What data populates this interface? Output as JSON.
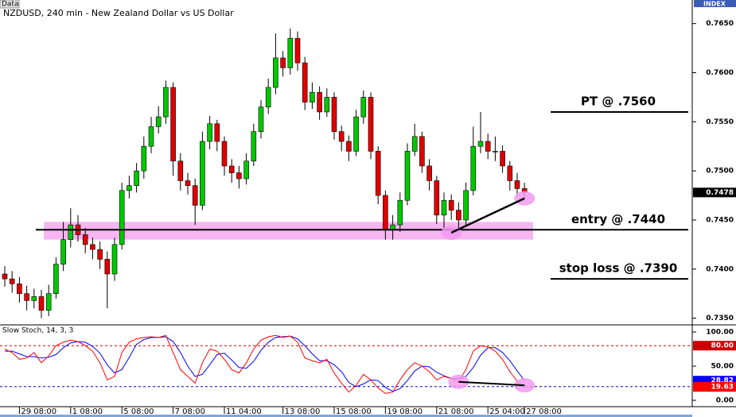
{
  "header": {
    "menu": "Data",
    "index": "INDEX"
  },
  "chart_data": [
    {
      "type": "candlestick",
      "title": "NZDUSD, 240 min - New Zealand Dollar vs US Dollar",
      "up_color": "#00c800",
      "down_color": "#e00000",
      "categories": [
        null,
        null,
        "29 08:00",
        null,
        null,
        null,
        null,
        null,
        null,
        "1 08:00",
        null,
        null,
        null,
        null,
        null,
        null,
        "5 08:00",
        null,
        null,
        null,
        null,
        null,
        null,
        "7 08:00",
        null,
        null,
        null,
        null,
        null,
        null,
        "11 04:00",
        null,
        null,
        null,
        null,
        null,
        null,
        null,
        "13 08:00",
        null,
        null,
        null,
        null,
        null,
        null,
        "15 08:00",
        null,
        null,
        null,
        null,
        null,
        null,
        "19 08:00",
        null,
        null,
        null,
        null,
        null,
        null,
        "21 08:00",
        null,
        null,
        null,
        null,
        null,
        null,
        "25 04:00",
        null,
        null,
        null,
        null,
        "27 08:00"
      ],
      "open": [
        0.7395,
        0.739,
        0.7385,
        0.7375,
        0.7368,
        0.7372,
        0.7358,
        0.7375,
        0.7405,
        0.743,
        0.7445,
        0.7435,
        0.7425,
        0.742,
        0.741,
        0.7395,
        0.7425,
        0.748,
        0.7485,
        0.75,
        0.7525,
        0.7545,
        0.7555,
        0.7585,
        0.751,
        0.749,
        0.7485,
        0.7465,
        0.753,
        0.7548,
        0.753,
        0.7505,
        0.7498,
        0.7492,
        0.751,
        0.754,
        0.7565,
        0.7585,
        0.7615,
        0.7605,
        0.7635,
        0.761,
        0.757,
        0.758,
        0.756,
        0.7575,
        0.754,
        0.753,
        0.752,
        0.7555,
        0.7575,
        0.752,
        0.7475,
        0.744,
        0.7445,
        0.747,
        0.752,
        0.7535,
        0.7505,
        0.749,
        0.7455,
        0.747,
        0.746,
        0.745,
        0.748,
        0.7525,
        0.753,
        0.752,
        0.752,
        0.7505,
        0.749,
        0.7482
      ],
      "high": [
        0.7403,
        0.7398,
        0.7392,
        0.7383,
        0.738,
        0.7379,
        0.7384,
        0.7412,
        0.7448,
        0.7462,
        0.7455,
        0.7442,
        0.7432,
        0.7428,
        0.7418,
        0.7432,
        0.7488,
        0.7495,
        0.7508,
        0.7535,
        0.7555,
        0.7566,
        0.7592,
        0.759,
        0.7518,
        0.7498,
        0.7492,
        0.754,
        0.7556,
        0.7552,
        0.7535,
        0.7512,
        0.7505,
        0.7518,
        0.7548,
        0.7572,
        0.7594,
        0.764,
        0.7622,
        0.7645,
        0.7642,
        0.7616,
        0.759,
        0.7586,
        0.7584,
        0.758,
        0.7546,
        0.7536,
        0.7562,
        0.7582,
        0.758,
        0.7525,
        0.748,
        0.7455,
        0.7478,
        0.7528,
        0.7548,
        0.754,
        0.7512,
        0.7495,
        0.7478,
        0.7476,
        0.7468,
        0.7488,
        0.7545,
        0.756,
        0.7538,
        0.7535,
        0.7526,
        0.751,
        0.7498,
        0.7488
      ],
      "low": [
        0.7382,
        0.7376,
        0.7366,
        0.7358,
        0.736,
        0.735,
        0.7352,
        0.737,
        0.7398,
        0.7422,
        0.7428,
        0.7416,
        0.741,
        0.74,
        0.736,
        0.7388,
        0.742,
        0.7472,
        0.7478,
        0.7492,
        0.7518,
        0.7538,
        0.7548,
        0.7495,
        0.748,
        0.7476,
        0.7445,
        0.746,
        0.7522,
        0.752,
        0.7495,
        0.7488,
        0.7482,
        0.7486,
        0.7505,
        0.7533,
        0.7558,
        0.7578,
        0.7596,
        0.7598,
        0.7602,
        0.7562,
        0.7563,
        0.7552,
        0.7555,
        0.7532,
        0.752,
        0.751,
        0.7515,
        0.7548,
        0.7512,
        0.7466,
        0.743,
        0.743,
        0.7438,
        0.7465,
        0.7515,
        0.7498,
        0.748,
        0.7446,
        0.744,
        0.745,
        0.744,
        0.7445,
        0.7475,
        0.7518,
        0.7512,
        0.751,
        0.7498,
        0.748,
        0.7475,
        0.7472
      ],
      "close": [
        0.739,
        0.7385,
        0.7375,
        0.7368,
        0.7372,
        0.7358,
        0.7375,
        0.7405,
        0.743,
        0.7445,
        0.7435,
        0.7425,
        0.742,
        0.741,
        0.7395,
        0.7425,
        0.748,
        0.7485,
        0.75,
        0.7525,
        0.7545,
        0.7555,
        0.7585,
        0.751,
        0.749,
        0.7485,
        0.7465,
        0.753,
        0.7548,
        0.753,
        0.7505,
        0.7498,
        0.7492,
        0.751,
        0.754,
        0.7565,
        0.7585,
        0.7615,
        0.7605,
        0.7635,
        0.761,
        0.757,
        0.758,
        0.756,
        0.7575,
        0.754,
        0.753,
        0.752,
        0.7555,
        0.7575,
        0.752,
        0.7475,
        0.744,
        0.7445,
        0.747,
        0.752,
        0.7535,
        0.7505,
        0.749,
        0.7455,
        0.747,
        0.746,
        0.745,
        0.748,
        0.7525,
        0.753,
        0.752,
        0.752,
        0.7505,
        0.749,
        0.7482,
        0.7478
      ],
      "last_label": "0.7478",
      "ylim": [
        0.7344,
        0.7674
      ],
      "yticks": [
        {
          "value": 0.735,
          "label": "0.7350"
        },
        {
          "value": 0.74,
          "label": "0.7400"
        },
        {
          "value": 0.745,
          "label": "0.7450"
        },
        {
          "value": 0.75,
          "label": "0.7500"
        },
        {
          "value": 0.755,
          "label": "0.7550"
        },
        {
          "value": 0.76,
          "label": "0.7600"
        },
        {
          "value": 0.765,
          "label": "0.7650"
        }
      ],
      "levels": [
        {
          "value": 0.756,
          "label": "PT @ .7560"
        },
        {
          "value": 0.744,
          "label": "entry @ .7440"
        },
        {
          "value": 0.739,
          "label": "stop loss @ .7390"
        }
      ],
      "highlight_band": [
        0.743,
        0.7448
      ],
      "trendlines": [
        {
          "x": [
            61,
            71
          ],
          "y": [
            0.7437,
            0.7472
          ]
        }
      ]
    },
    {
      "type": "line",
      "title": "Slow Stoch, 14, 3, 3",
      "series": [
        {
          "color": "#0000ff",
          "last_label": "28.82",
          "values": [
            72,
            72,
            68,
            64,
            64,
            62,
            63,
            67,
            77,
            84,
            86,
            85,
            79,
            69,
            52,
            40,
            45,
            63,
            82,
            89,
            92,
            92,
            93,
            86,
            70,
            50,
            35,
            38,
            52,
            67,
            69,
            59,
            48,
            47,
            57,
            73,
            85,
            92,
            93,
            94,
            90,
            80,
            68,
            58,
            58,
            52,
            42,
            26,
            20,
            24,
            30,
            29,
            19,
            13,
            17,
            29,
            43,
            50,
            49,
            41,
            36,
            32,
            32,
            35,
            48,
            66,
            77,
            77,
            70,
            58,
            43,
            28.82
          ]
        },
        {
          "color": "#ff0000",
          "last_label": "19.63",
          "values": [
            75,
            70,
            60,
            62,
            70,
            55,
            65,
            80,
            85,
            88,
            86,
            80,
            72,
            55,
            30,
            35,
            70,
            85,
            90,
            92,
            93,
            92,
            95,
            70,
            45,
            35,
            25,
            55,
            75,
            72,
            60,
            45,
            40,
            55,
            75,
            88,
            93,
            95,
            92,
            94,
            85,
            62,
            58,
            55,
            60,
            40,
            25,
            12,
            22,
            38,
            30,
            18,
            10,
            12,
            30,
            45,
            55,
            50,
            42,
            30,
            35,
            32,
            28,
            45,
            72,
            80,
            78,
            72,
            60,
            42,
            28,
            19.63
          ]
        }
      ],
      "ylim": [
        -9.3,
        109.3
      ],
      "yticks": [
        {
          "value": 0,
          "label": "0.00"
        },
        {
          "value": 50,
          "label": "50.00"
        },
        {
          "value": 100,
          "label": "100.00"
        }
      ],
      "levels": [
        {
          "value": 80,
          "label": "80.00",
          "color": "#cc0000"
        },
        {
          "value": 20,
          "color": "#0000cc"
        }
      ],
      "trendlines": [
        {
          "x": [
            62,
            71
          ],
          "y": [
            27,
            22
          ]
        }
      ]
    }
  ]
}
